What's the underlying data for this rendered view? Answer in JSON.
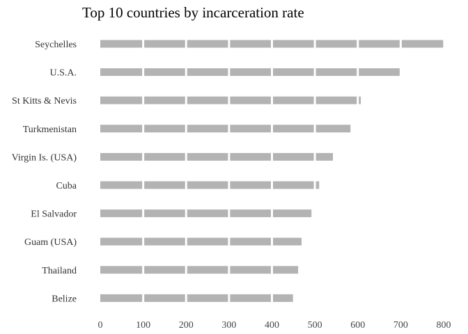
{
  "chart_data": {
    "type": "bar",
    "orientation": "horizontal",
    "title": "Top 10 countries by incarceration rate",
    "xlabel": "",
    "ylabel": "",
    "categories": [
      "Seychelles",
      "U.S.A.",
      "St Kitts & Nevis",
      "Turkmenistan",
      "Virgin Is. (USA)",
      "Cuba",
      "El Salvador",
      "Guam (USA)",
      "Thailand",
      "Belize"
    ],
    "values": [
      799,
      698,
      607,
      583,
      542,
      510,
      492,
      469,
      461,
      449
    ],
    "xlim": [
      0,
      800
    ],
    "xticks": [
      0,
      100,
      200,
      300,
      400,
      500,
      600,
      700,
      800
    ],
    "grid": "vertical white lines drawn over bars",
    "legend": "none",
    "bar_color": "#b3b3b3",
    "grid_color": "#ffffff"
  }
}
